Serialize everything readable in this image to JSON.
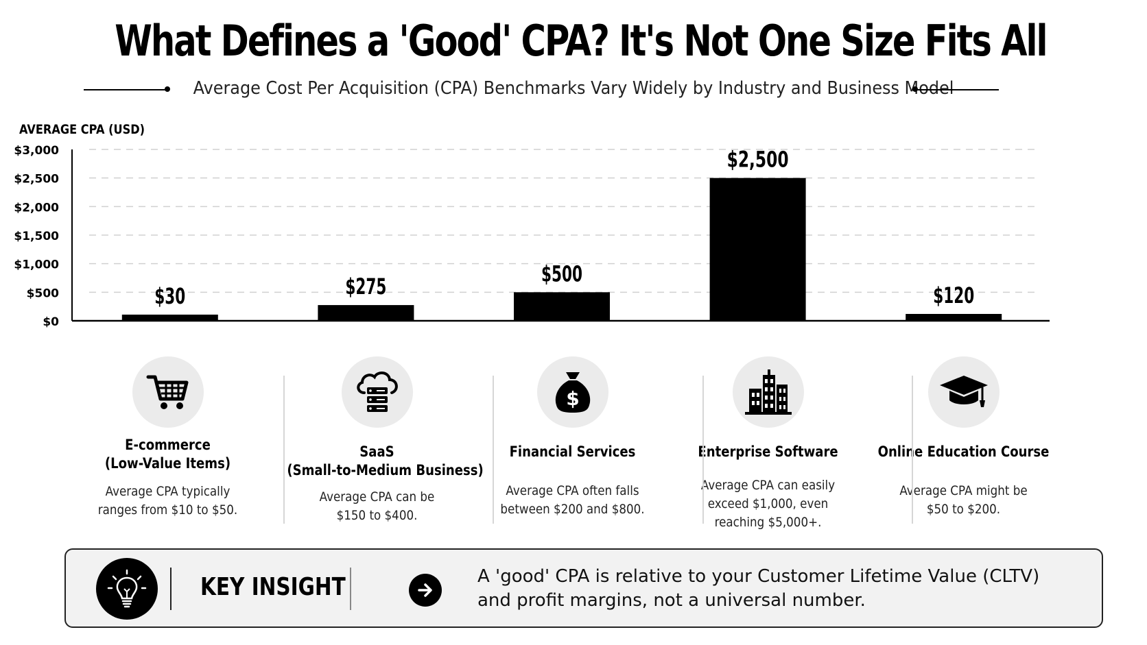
{
  "title": "What Defines a 'Good' CPA? It's Not One Size Fits All",
  "subtitle": "Average Cost Per Acquisition (CPA) Benchmarks Vary Widely by Industry and Business Model",
  "chart_data": {
    "type": "bar",
    "title": "What Defines a 'Good' CPA? It's Not One Size Fits All",
    "subtitle": "Average Cost Per Acquisition (CPA) Benchmarks Vary Widely by Industry and Business Model",
    "ylabel": "AVERAGE CPA (USD)",
    "xlabel": "",
    "categories": [
      "E-commerce (Low-Value Items)",
      "SaaS (Small-to-Medium Business)",
      "Financial Services",
      "Enterprise Software",
      "Online Education Course"
    ],
    "values": [
      30,
      275,
      500,
      2500,
      120
    ],
    "data_labels": [
      "$30",
      "$275",
      "$500",
      "$2,500",
      "$120"
    ],
    "ylim": [
      0,
      3000
    ],
    "yticks": [
      0,
      500,
      1000,
      1500,
      2000,
      2500,
      3000
    ],
    "ytick_labels": [
      "$0",
      "$500",
      "$1,000",
      "$1,500",
      "$2,000",
      "$2,500",
      "$3,000"
    ],
    "grid": true,
    "legend": "none",
    "bar_color": "#000000"
  },
  "categories": [
    {
      "icon": "shopping-cart-icon",
      "name_lines": [
        "E-commerce",
        "(Low-Value Items)"
      ],
      "desc_lines": [
        "Average CPA typically",
        "ranges from $10 to $50."
      ]
    },
    {
      "icon": "cloud-server-icon",
      "name_lines": [
        "SaaS",
        "(Small-to-Medium Business)"
      ],
      "desc_lines": [
        "Average CPA can be",
        "$150 to $400."
      ]
    },
    {
      "icon": "money-bag-icon",
      "name_lines": [
        "Financial Services"
      ],
      "desc_lines": [
        "Average CPA often falls",
        "between $200 and $800."
      ]
    },
    {
      "icon": "office-buildings-icon",
      "name_lines": [
        "Enterprise Software"
      ],
      "desc_lines": [
        "Average CPA can easily",
        "exceed $1,000, even",
        "reaching $5,000+."
      ]
    },
    {
      "icon": "graduation-cap-icon",
      "name_lines": [
        "Online Education Course"
      ],
      "desc_lines": [
        "Average CPA might be",
        "$50 to $200."
      ]
    }
  ],
  "insight": {
    "icon": "lightbulb-icon",
    "label": "KEY INSIGHT",
    "arrow_icon": "arrow-right-icon",
    "text_lines": [
      "A 'good' CPA is relative to your Customer Lifetime Value (CLTV)",
      "and profit margins, not a universal number."
    ]
  }
}
